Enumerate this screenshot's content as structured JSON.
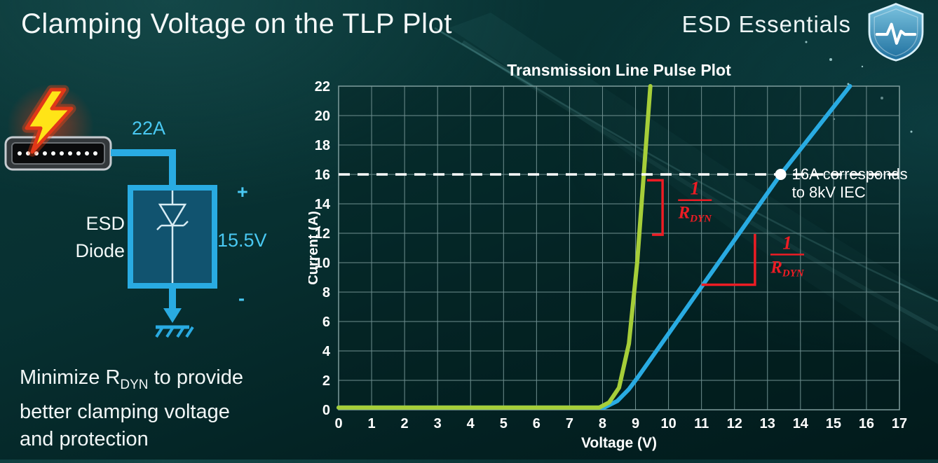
{
  "slide": {
    "title": "Clamping Voltage on the TLP Plot",
    "brand": "ESD Essentials"
  },
  "diagram": {
    "surge_current": "22A",
    "device_name_line1": "ESD",
    "device_name_line2": "Diode",
    "plus": "+",
    "clamp_voltage": "15.5V",
    "minus": "-"
  },
  "footer": {
    "line1_pre": "Minimize R",
    "line1_sub": "DYN",
    "line1_post": " to provide",
    "line2": "better clamping voltage",
    "line3": "and protection"
  },
  "chart_data": {
    "type": "line",
    "title": "Transmission Line Pulse Plot",
    "xlabel": "Voltage (V)",
    "ylabel": "Current (A)",
    "xlim": [
      0,
      17
    ],
    "ylim": [
      0,
      22
    ],
    "xtick_step": 1,
    "ytick_step": 2,
    "grid": true,
    "legend": "none",
    "series": [
      {
        "name": "esd-diode-high-rdyn",
        "color": "#29abe2",
        "points": [
          [
            0,
            0.15
          ],
          [
            8.05,
            0.15
          ],
          [
            8.45,
            0.6
          ],
          [
            8.8,
            1.4
          ],
          [
            9.1,
            2.3
          ],
          [
            13.4,
            16
          ],
          [
            15.5,
            22
          ]
        ]
      },
      {
        "name": "esd-diode-low-rdyn",
        "color": "#a6ce39",
        "points": [
          [
            0,
            0.15
          ],
          [
            7.9,
            0.15
          ],
          [
            8.2,
            0.5
          ],
          [
            8.5,
            1.5
          ],
          [
            8.8,
            4.5
          ],
          [
            9.05,
            10
          ],
          [
            9.45,
            22
          ]
        ]
      }
    ],
    "reference_line": {
      "y": 16,
      "color": "#ffffff",
      "style": "dashed"
    },
    "marker": {
      "x": 13.4,
      "y": 16,
      "r": 8,
      "color": "#ffffff"
    },
    "marker_label": {
      "line1": "16A corresponds",
      "line2": "to 8kV IEC",
      "color": "#ffffff"
    },
    "slope_markers": [
      {
        "points": [
          [
            9.35,
            15.6
          ],
          [
            9.82,
            15.6
          ],
          [
            9.82,
            11.9
          ],
          [
            9.5,
            11.9
          ]
        ],
        "color": "#ed1c24"
      },
      {
        "points": [
          [
            11.0,
            8.5
          ],
          [
            12.62,
            8.5
          ],
          [
            12.62,
            11.95
          ]
        ],
        "color": "#ed1c24"
      }
    ],
    "slope_labels": [
      {
        "num": "1",
        "den_base": "R",
        "den_sub": "DYN",
        "x": 10.8,
        "y": 14.3,
        "color": "#ed1c24"
      },
      {
        "num": "1",
        "den_base": "R",
        "den_sub": "DYN",
        "x": 13.6,
        "y": 10.6,
        "color": "#ed1c24"
      }
    ]
  }
}
